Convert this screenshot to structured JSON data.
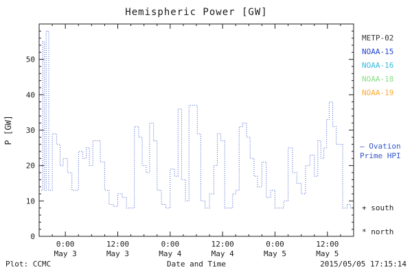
{
  "chart_data": {
    "type": "line",
    "title": "Hemispheric Power [GW]",
    "xlabel": "Date and Time",
    "ylabel": "P [GW]",
    "xlim": [
      0,
      72
    ],
    "ylim": [
      0,
      60
    ],
    "yticks": [
      0,
      10,
      20,
      30,
      40,
      50
    ],
    "y_minor_step": 2,
    "x_minor_step": 3,
    "xticks": [
      {
        "hour": 6,
        "time": "0:00",
        "date": "May 3"
      },
      {
        "hour": 18,
        "time": "12:00",
        "date": "May 3"
      },
      {
        "hour": 30,
        "time": "0:00",
        "date": "May 4"
      },
      {
        "hour": 42,
        "time": "12:00",
        "date": "May 4"
      },
      {
        "hour": 54,
        "time": "0:00",
        "date": "May 5"
      },
      {
        "hour": 66,
        "time": "12:00",
        "date": "May 5"
      }
    ],
    "grid": false,
    "legend_position": "right-outside",
    "series": [
      {
        "name": "Ovation Prime HPI",
        "color": "#3355cc",
        "style": "dotted-step",
        "points": [
          [
            0,
            13
          ],
          [
            0.8,
            55
          ],
          [
            1.2,
            13
          ],
          [
            1.6,
            58
          ],
          [
            2.2,
            13
          ],
          [
            3,
            29
          ],
          [
            4,
            26
          ],
          [
            4.8,
            20
          ],
          [
            5.5,
            22
          ],
          [
            6.5,
            18
          ],
          [
            7.5,
            13
          ],
          [
            8.2,
            13
          ],
          [
            9,
            24
          ],
          [
            10,
            22
          ],
          [
            10.8,
            25
          ],
          [
            11.5,
            20
          ],
          [
            12.3,
            27
          ],
          [
            13.2,
            27
          ],
          [
            14,
            21
          ],
          [
            15,
            13
          ],
          [
            16,
            9
          ],
          [
            17,
            8.5
          ],
          [
            18,
            12
          ],
          [
            19,
            11
          ],
          [
            20,
            8
          ],
          [
            21,
            8
          ],
          [
            21.8,
            31
          ],
          [
            22.8,
            28
          ],
          [
            23.6,
            20
          ],
          [
            24.5,
            18
          ],
          [
            25.3,
            32
          ],
          [
            26.2,
            27
          ],
          [
            27,
            13
          ],
          [
            28,
            9
          ],
          [
            29,
            8
          ],
          [
            30,
            19
          ],
          [
            31,
            17
          ],
          [
            31.8,
            36
          ],
          [
            32.6,
            16
          ],
          [
            33.5,
            10
          ],
          [
            34.3,
            37
          ],
          [
            35.2,
            37
          ],
          [
            36.2,
            29
          ],
          [
            37,
            10
          ],
          [
            38,
            8
          ],
          [
            39,
            12
          ],
          [
            40,
            20
          ],
          [
            40.8,
            29
          ],
          [
            41.6,
            27
          ],
          [
            42.5,
            8
          ],
          [
            43.5,
            8
          ],
          [
            44.3,
            12
          ],
          [
            45,
            13
          ],
          [
            45.8,
            31
          ],
          [
            46.6,
            32
          ],
          [
            47.5,
            28
          ],
          [
            48.3,
            22
          ],
          [
            49.2,
            17
          ],
          [
            50,
            14
          ],
          [
            51,
            21
          ],
          [
            52,
            11
          ],
          [
            53,
            13
          ],
          [
            54,
            8
          ],
          [
            55,
            8
          ],
          [
            56,
            10
          ],
          [
            57,
            25
          ],
          [
            58,
            18
          ],
          [
            59,
            15
          ],
          [
            60,
            12
          ],
          [
            61,
            20
          ],
          [
            62,
            23
          ],
          [
            63,
            17
          ],
          [
            63.8,
            27
          ],
          [
            64.5,
            22
          ],
          [
            65.2,
            25
          ],
          [
            65.8,
            33
          ],
          [
            66.4,
            38
          ],
          [
            67.2,
            31
          ],
          [
            68,
            26
          ],
          [
            69.5,
            8
          ],
          [
            70.5,
            9
          ],
          [
            71.3,
            8
          ]
        ]
      }
    ]
  },
  "legend": {
    "satellites": [
      {
        "label": "METP-02",
        "color": "#333333"
      },
      {
        "label": "NOAA-15",
        "color": "#2244cc"
      },
      {
        "label": "NOAA-16",
        "color": "#33bbdd"
      },
      {
        "label": "NOAA-18",
        "color": "#88dd88"
      },
      {
        "label": "NOAA-19",
        "color": "#ffaa33"
      }
    ],
    "ovation": {
      "line1": "— Ovation",
      "line2": "Prime HPI",
      "color": "#3355cc"
    },
    "markers": {
      "south": "+ south",
      "north": "* north"
    }
  },
  "footer": {
    "plot_credit": "Plot: CCMC",
    "timestamp": "2015/05/05 17:15:14"
  }
}
